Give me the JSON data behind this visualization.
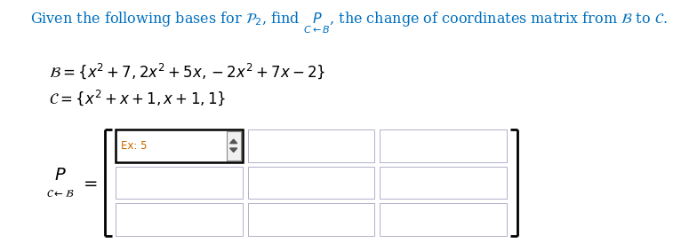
{
  "bg_color": "#ffffff",
  "title_color": "#0070C0",
  "title_fontsize": 11.5,
  "math_color": "#000000",
  "ex5_color": "#CC6600",
  "cell_border_color": "#B0B0CC",
  "active_cell_border_color": "#000000",
  "matrix_rows": 3,
  "matrix_cols": 3
}
